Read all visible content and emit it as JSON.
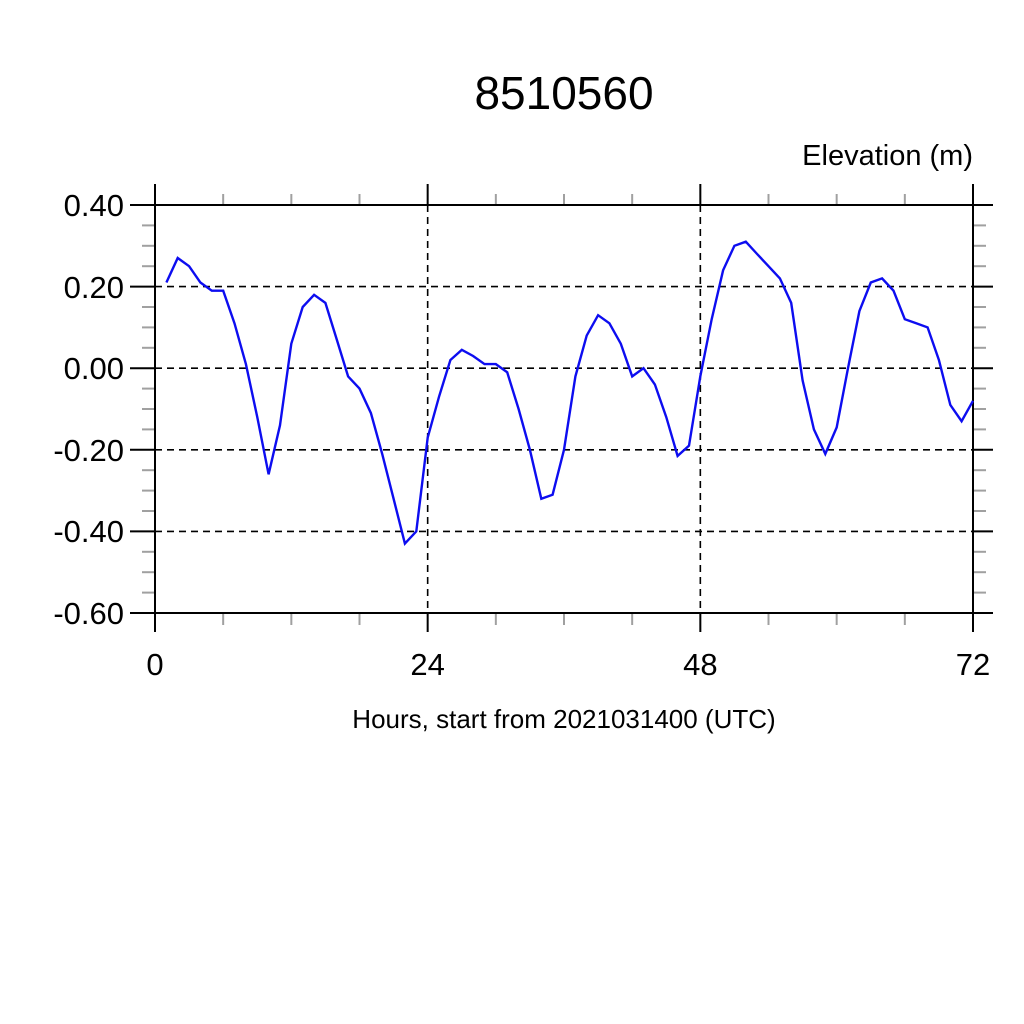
{
  "title": "8510560",
  "y_axis_label": "Elevation (m)",
  "x_axis_label": "Hours, start from 2021031400 (UTC)",
  "colors": {
    "line": "#0d0df0",
    "frame": "#000000",
    "grid": "#000000",
    "minor_tick": "#a0a0a0",
    "major_tick": "#000000",
    "background": "#ffffff"
  },
  "chart_data": {
    "type": "line",
    "title": "8510560",
    "xlabel": "Hours, start from 2021031400 (UTC)",
    "ylabel": "Elevation (m)",
    "xlim": [
      0,
      72
    ],
    "ylim": [
      -0.6,
      0.4
    ],
    "grid": "dashed at major ticks, vertical lines at 24 and 48",
    "legend": "none",
    "x_tick_values": [
      0,
      24,
      48,
      72
    ],
    "x_tick_labels": [
      "0",
      "24",
      "48",
      "72"
    ],
    "x_minor_step": 6,
    "y_tick_values": [
      0.4,
      0.2,
      0.0,
      -0.2,
      -0.4,
      -0.6
    ],
    "y_tick_labels": [
      "0.40",
      "0.20",
      "0.00",
      "-0.20",
      "-0.40",
      "-0.60"
    ],
    "y_minor_step": 0.05,
    "series": [
      {
        "name": "elevation",
        "color": "#0d0df0",
        "x": [
          1,
          2,
          3,
          4,
          5,
          6,
          7,
          8,
          9,
          10,
          11,
          12,
          13,
          14,
          15,
          16,
          17,
          18,
          19,
          20,
          21,
          22,
          23,
          24,
          25,
          26,
          27,
          28,
          29,
          30,
          31,
          32,
          33,
          34,
          35,
          36,
          37,
          38,
          39,
          40,
          41,
          42,
          43,
          44,
          45,
          46,
          47,
          48,
          49,
          50,
          51,
          52,
          53,
          54,
          55,
          56,
          57,
          58,
          59,
          60,
          61,
          62,
          63,
          64,
          65,
          66,
          67,
          68,
          69,
          70,
          71,
          72
        ],
        "values": [
          0.21,
          0.27,
          0.25,
          0.21,
          0.19,
          0.19,
          0.11,
          0.01,
          -0.12,
          -0.26,
          -0.14,
          0.06,
          0.15,
          0.18,
          0.16,
          0.07,
          -0.02,
          -0.05,
          -0.11,
          -0.21,
          -0.32,
          -0.43,
          -0.4,
          -0.17,
          -0.07,
          0.02,
          0.045,
          0.03,
          0.01,
          0.01,
          -0.01,
          -0.1,
          -0.2,
          -0.32,
          -0.31,
          -0.2,
          -0.02,
          0.08,
          0.13,
          0.11,
          0.06,
          -0.02,
          0.0,
          -0.04,
          -0.12,
          -0.215,
          -0.19,
          -0.02,
          0.12,
          0.24,
          0.3,
          0.31,
          0.28,
          0.25,
          0.22,
          0.16,
          -0.03,
          -0.15,
          -0.21,
          -0.145,
          0.0,
          0.14,
          0.21,
          0.22,
          0.19,
          0.12,
          0.11,
          0.1,
          0.02,
          -0.09,
          -0.13,
          -0.08
        ]
      }
    ]
  }
}
